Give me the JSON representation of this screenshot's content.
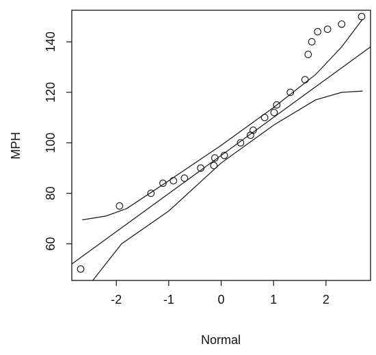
{
  "chart_data": {
    "type": "scatter",
    "xlabel": "Normal",
    "ylabel": "MPH",
    "xlim": [
      -2.85,
      2.85
    ],
    "ylim": [
      45.5,
      152.5
    ],
    "x_ticks": [
      -2,
      -1,
      0,
      1,
      2
    ],
    "y_ticks": [
      60,
      80,
      100,
      120,
      140
    ],
    "x_tick_labels": [
      "-2",
      "-1",
      "0",
      "1",
      "2"
    ],
    "y_tick_labels": [
      "60",
      "80",
      "100",
      "120",
      "140"
    ],
    "grid": false,
    "points": [
      {
        "x": -2.68,
        "y": 50
      },
      {
        "x": -1.94,
        "y": 75
      },
      {
        "x": -1.34,
        "y": 80
      },
      {
        "x": -1.11,
        "y": 84
      },
      {
        "x": -0.91,
        "y": 85
      },
      {
        "x": -0.7,
        "y": 86
      },
      {
        "x": -0.39,
        "y": 90
      },
      {
        "x": -0.14,
        "y": 91
      },
      {
        "x": -0.12,
        "y": 94
      },
      {
        "x": 0.06,
        "y": 95
      },
      {
        "x": 0.37,
        "y": 100
      },
      {
        "x": 0.56,
        "y": 103
      },
      {
        "x": 0.61,
        "y": 105
      },
      {
        "x": 0.83,
        "y": 110
      },
      {
        "x": 1.01,
        "y": 112
      },
      {
        "x": 1.06,
        "y": 115
      },
      {
        "x": 1.32,
        "y": 120
      },
      {
        "x": 1.6,
        "y": 125
      },
      {
        "x": 1.66,
        "y": 135
      },
      {
        "x": 1.73,
        "y": 140
      },
      {
        "x": 1.84,
        "y": 144
      },
      {
        "x": 2.03,
        "y": 145
      },
      {
        "x": 2.3,
        "y": 147
      },
      {
        "x": 2.68,
        "y": 150
      }
    ],
    "reference_line": [
      {
        "x": -2.85,
        "y": 52
      },
      {
        "x": 2.85,
        "y": 138
      }
    ],
    "upper_band": [
      {
        "x": -2.65,
        "y": 69.5
      },
      {
        "x": -2.2,
        "y": 71
      },
      {
        "x": -1.8,
        "y": 74
      },
      {
        "x": -1.0,
        "y": 85
      },
      {
        "x": 0.0,
        "y": 99
      },
      {
        "x": 1.0,
        "y": 114
      },
      {
        "x": 1.8,
        "y": 127
      },
      {
        "x": 2.3,
        "y": 138
      },
      {
        "x": 2.7,
        "y": 149
      }
    ],
    "lower_band": [
      {
        "x": -2.45,
        "y": 45.5
      },
      {
        "x": -1.9,
        "y": 60
      },
      {
        "x": -1.0,
        "y": 73
      },
      {
        "x": 0.0,
        "y": 92
      },
      {
        "x": 1.0,
        "y": 107
      },
      {
        "x": 1.8,
        "y": 117
      },
      {
        "x": 2.3,
        "y": 120
      },
      {
        "x": 2.7,
        "y": 120.5
      }
    ]
  }
}
